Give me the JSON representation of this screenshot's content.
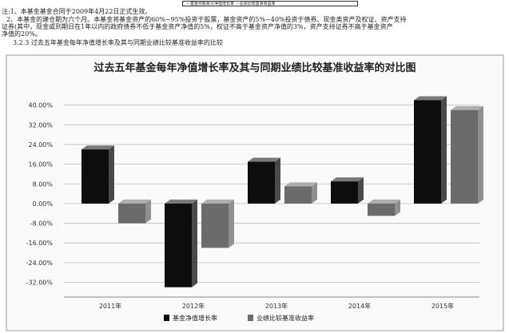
{
  "header": {
    "legend_strip": "—基金份额累计净值增长率  —业绩比较基准收益率"
  },
  "notes": {
    "line1": "注:1、本基金基金合同于2009年4月22日正式生效。",
    "line2": "2、本基金的建仓期为六个月。本基金将基金资产的60%~95%投资于股票，基金资产的5%~40%投资于债券、现金类资产及权证、资产支持",
    "line3": "证券(其中，现金或到期日在1年以内的政府债券不低于基金资产净值的5%，权证不高于基金资产净值的3%，资产支持证券不高于基金资产",
    "line4": "净值的20%。",
    "section_title": "3.2.3  过去五年基金每年净值增长率及其与同期业绩比较基准收益率的比较"
  },
  "colors": {
    "fund": "#0d0d0d",
    "benchmark": "#6b6b6b",
    "grid": "#bdbdbd",
    "frame": "#9a9a9a"
  },
  "chart_data": {
    "type": "bar",
    "title": "过去五年基金每年净值增长率及其与同期业绩比较基准收益率的对比图",
    "categories": [
      "2011年",
      "2012年",
      "2013年",
      "2014年",
      "2015年"
    ],
    "series": [
      {
        "name": "基金净值增长率",
        "values": [
          22.0,
          -34.0,
          17.0,
          9.0,
          42.0
        ]
      },
      {
        "name": "业绩比较基准收益率",
        "values": [
          -8.0,
          -18.0,
          7.0,
          -5.0,
          38.0
        ]
      }
    ],
    "yticks": [
      "-32.00%",
      "-24.00%",
      "-16.00%",
      "-8.00%",
      "0.00%",
      "8.00%",
      "16.00%",
      "24.00%",
      "32.00%",
      "40.00%"
    ],
    "ylim": [
      -38,
      48
    ],
    "grid": true,
    "legend_position": "bottom"
  }
}
